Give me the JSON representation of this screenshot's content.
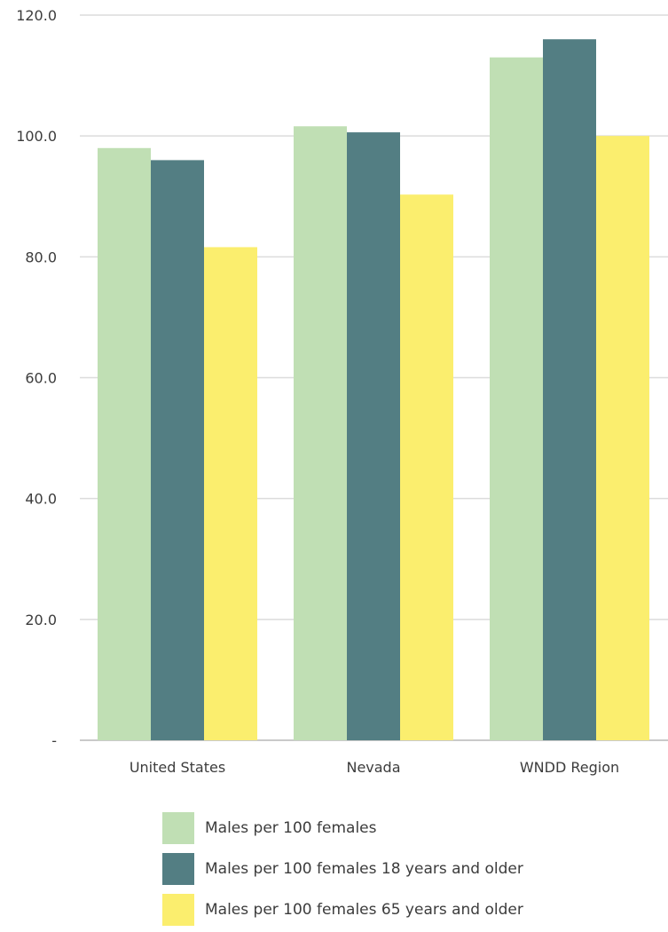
{
  "chart_data": {
    "type": "bar",
    "title": "",
    "xlabel": "",
    "ylabel": "",
    "categories": [
      "United States",
      "Nevada",
      "WNDD Region"
    ],
    "series": [
      {
        "name": "Males per 100 females",
        "values": [
          98.0,
          101.6,
          113.0
        ],
        "color": "#c0dfb4"
      },
      {
        "name": "Males per 100 females 18 years and older",
        "values": [
          96.0,
          100.6,
          116.0
        ],
        "color": "#537e83"
      },
      {
        "name": "Males per 100 females 65 years and older",
        "values": [
          81.6,
          90.3,
          100.0
        ],
        "color": "#fbee6e"
      }
    ],
    "ylim": [
      0,
      120
    ],
    "yticks": [
      0,
      20,
      40,
      60,
      80,
      100,
      120
    ],
    "ytick_labels": [
      "-",
      "20.0",
      "40.0",
      "60.0",
      "80.0",
      "100.0",
      "120.0"
    ],
    "grid": true,
    "legend_position": "bottom"
  }
}
